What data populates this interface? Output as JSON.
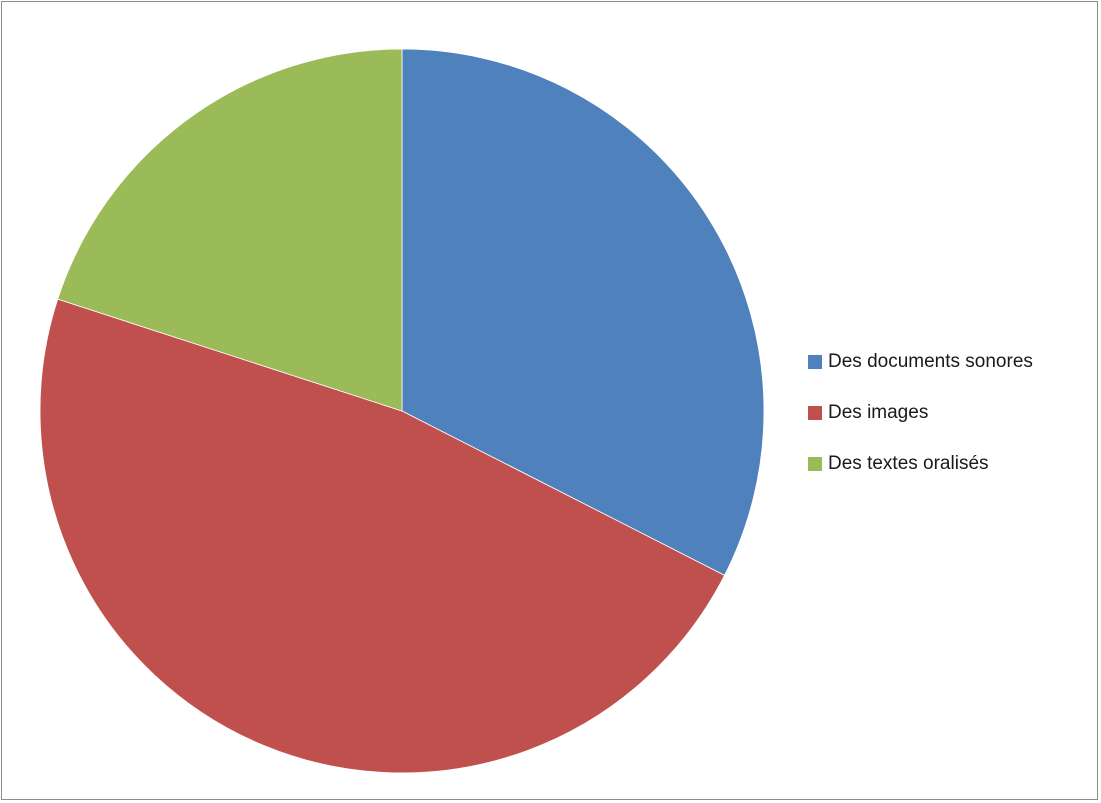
{
  "chart_data": {
    "type": "pie",
    "title": "",
    "legend_position": "right",
    "start_angle_deg": 0,
    "direction": "clockwise",
    "categories": [
      "Des documents sonores",
      "Des images",
      "Des textes oralisés"
    ],
    "values": [
      32.5,
      47.5,
      20.0
    ],
    "colors": [
      "#4f81bd",
      "#c0504d",
      "#9bbb59"
    ]
  }
}
